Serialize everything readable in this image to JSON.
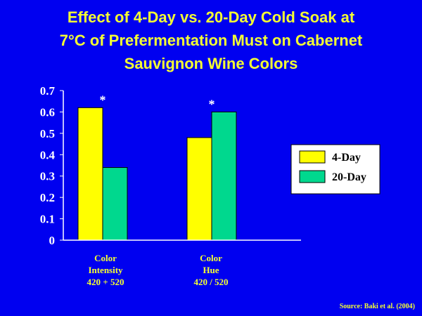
{
  "slide": {
    "title_lines": [
      "Effect of 4-Day vs. 20-Day Cold Soak at",
      "7°C of Prefermentation Must on Cabernet",
      "Sauvignon Wine Colors"
    ],
    "source": "Source: Baki et al. (2004)"
  },
  "colors": {
    "background": "#0000f0",
    "text": "#f4ff33",
    "axis": "#ffffff",
    "series_4day": "#ffff00",
    "series_20day": "#00d88e"
  },
  "chart_data": {
    "type": "bar",
    "title": "Effect of 4-Day vs. 20-Day Cold Soak at 7°C of Prefermentation Must on Cabernet Sauvignon Wine Colors",
    "categories": [
      [
        "Color",
        "Intensity",
        "420 + 520"
      ],
      [
        "Color",
        "Hue",
        "420 / 520"
      ]
    ],
    "series": [
      {
        "name": "4-Day",
        "values": [
          0.62,
          0.48
        ]
      },
      {
        "name": "20-Day",
        "values": [
          0.34,
          0.6
        ]
      }
    ],
    "significance": [
      "*",
      "*"
    ],
    "ylim": [
      0,
      0.7
    ],
    "yticks": [
      "0",
      "0.1",
      "0.2",
      "0.3",
      "0.4",
      "0.5",
      "0.6",
      "0.7"
    ],
    "xlabel": "",
    "ylabel": "",
    "grid": false,
    "legend": "right"
  }
}
